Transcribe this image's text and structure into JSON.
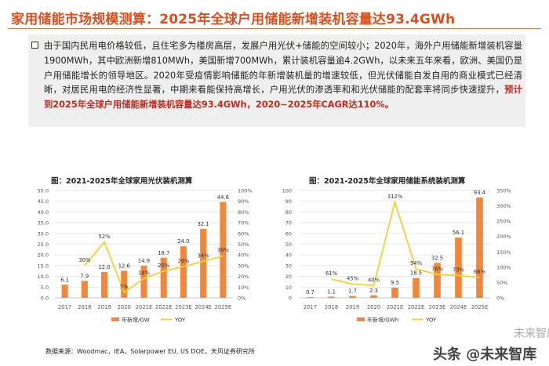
{
  "page": {
    "title": "家用储能市场规模测算：2025年全球户用储能新增装机容量达93.4GWh",
    "summary_normal": "由于国内民用电价格较低，且住宅多为楼房高层，发展户用光伏+储能的空间较小；2020年，海外户用储能新增装机容量1900MWh，其中欧洲新增810MWh，美国新增700MWh，累计装机容量逾4.2GWh，以未来五年来看，欧洲、美国仍是户用储能增长的领导地区。2020年受疫情影响储能的年新增装机量的增速较低，但光伏储能自发自用的商业模式已经清晰，对居民用电的经济性显著，中期来看能保持高增长，户用光伏的渗透率和和光伏储能的配套率将同步快速提升，",
    "summary_highlight": "预计到2025年全球户用储能新增装机容量达93.4GWh，2020~2025年CAGR达110%。",
    "source": "数据来源：Woodmac，IEA，Solarpower EU, US DOE，天风证券研究所",
    "watermark": "头条 @未来智库",
    "watermark_faint": "未来智库",
    "colors": {
      "accent": "#d94f1f",
      "bar": "#f0873a",
      "line": "#f5d033",
      "highlight": "#c8281b"
    }
  },
  "chart_data": [
    {
      "type": "bar",
      "title": "图：2021-2025年全球家用光伏装机测算",
      "categories": [
        "2017",
        "2018",
        "2019",
        "2020",
        "2021E",
        "2022E",
        "2023E",
        "2024E",
        "2025E"
      ],
      "series": [
        {
          "name": "年新增/GW",
          "type": "bar",
          "axis": "left",
          "values": [
            6.1,
            7.9,
            12.0,
            12.6,
            14.9,
            18.7,
            24.0,
            32.1,
            44.6
          ],
          "labels": [
            "6.1",
            "7.9",
            "12.0",
            "12.6",
            "14.9",
            "18.7",
            "24.0",
            "32.1",
            "44.6"
          ]
        },
        {
          "name": "YOY",
          "type": "line",
          "axis": "right",
          "values": [
            null,
            30,
            52,
            5,
            18,
            25,
            29,
            34,
            39
          ],
          "labels": [
            "",
            "30%",
            "52%",
            "5%",
            "18%",
            "25%",
            "29%",
            "34%",
            "39%"
          ]
        }
      ],
      "yticks_left": [
        "0.0",
        "5.0",
        "10.0",
        "15.0",
        "20.0",
        "25.0",
        "30.0",
        "35.0",
        "40.0",
        "45.0",
        "50.0"
      ],
      "yticks_right": [
        "0%",
        "10%",
        "20%",
        "30%",
        "40%",
        "50%",
        "60%",
        "70%",
        "80%",
        "90%",
        "100%"
      ],
      "ylim_left": [
        0,
        50
      ],
      "ylim_right": [
        0,
        100
      ],
      "legend": "bottom"
    },
    {
      "type": "bar",
      "title": "图：2021-2025年全球家用储能系统装机测算",
      "categories": [
        "2017",
        "2018",
        "2019",
        "2020",
        "2021E",
        "2022E",
        "2023E",
        "2024E",
        "2025E"
      ],
      "series": [
        {
          "name": "年新增/GWh",
          "type": "bar",
          "axis": "left",
          "values": [
            0.7,
            1.1,
            1.7,
            2.3,
            9.5,
            18.5,
            32.5,
            56.1,
            93.4
          ],
          "labels": [
            "0.7",
            "1.1",
            "1.7",
            "2.3",
            "9.5",
            "18.5",
            "32.5",
            "56.1",
            "93.4"
          ]
        },
        {
          "name": "YOY",
          "type": "line",
          "axis": "right",
          "values": [
            null,
            61,
            45,
            40,
            312,
            94,
            76,
            73,
            66
          ],
          "labels": [
            "",
            "61%",
            "45%",
            "40%",
            "312%",
            "94%",
            "76%",
            "73%",
            "66%"
          ]
        }
      ],
      "yticks_left": [
        "0",
        "10",
        "20",
        "30",
        "40",
        "50",
        "60",
        "70",
        "80",
        "90",
        "100"
      ],
      "yticks_right": [
        "0%",
        "50%",
        "100%",
        "150%",
        "200%",
        "250%",
        "300%",
        "350%"
      ],
      "ylim_left": [
        0,
        100
      ],
      "ylim_right": [
        0,
        350
      ],
      "legend": "bottom"
    }
  ]
}
